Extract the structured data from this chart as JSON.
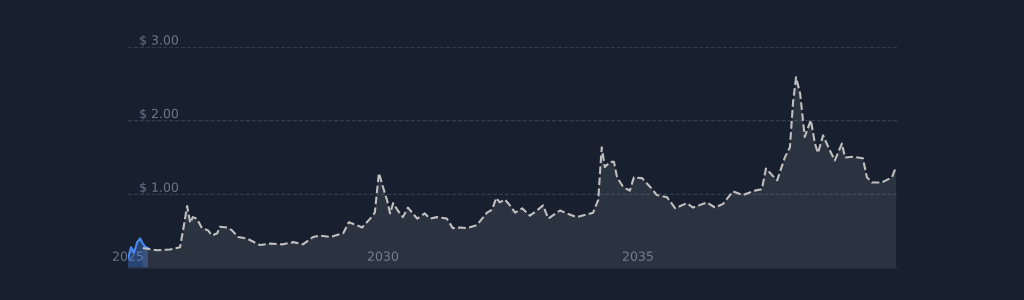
{
  "chart_data": {
    "type": "area",
    "xlim": [
      2025,
      2040.08
    ],
    "xticks": [
      2025,
      2030,
      2035
    ],
    "ylim": [
      0,
      3
    ],
    "yticks": [
      {
        "value": 1,
        "label": "$ 1.00"
      },
      {
        "value": 2,
        "label": "$ 2.00"
      },
      {
        "value": 3,
        "label": "$ 3.00"
      }
    ],
    "grid": "y",
    "series": [
      {
        "color": "#4a8af4",
        "line_style": "solid",
        "x": [
          2025.0,
          2025.06,
          2025.12,
          2025.18,
          2025.24,
          2025.29,
          2025.35,
          2025.39
        ],
        "values": [
          0.13,
          0.28,
          0.21,
          0.35,
          0.4,
          0.33,
          0.28,
          0.27
        ]
      },
      {
        "color": "#c0c0c0",
        "line_style": "dashed",
        "x": [
          2025.29,
          2025.57,
          2025.82,
          2026.02,
          2026.08,
          2026.16,
          2026.22,
          2026.27,
          2026.35,
          2026.45,
          2026.57,
          2026.65,
          2026.75,
          2026.8,
          2026.94,
          2027.04,
          2027.16,
          2027.33,
          2027.53,
          2027.59,
          2027.78,
          2028.04,
          2028.24,
          2028.43,
          2028.63,
          2028.76,
          2028.96,
          2029.22,
          2029.33,
          2029.49,
          2029.59,
          2029.75,
          2029.84,
          2029.92,
          2030.0,
          2030.08,
          2030.14,
          2030.2,
          2030.29,
          2030.39,
          2030.49,
          2030.67,
          2030.82,
          2030.92,
          2031.06,
          2031.25,
          2031.37,
          2031.51,
          2031.65,
          2031.84,
          2032.04,
          2032.14,
          2032.22,
          2032.29,
          2032.39,
          2032.49,
          2032.59,
          2032.73,
          2032.88,
          2033.02,
          2033.14,
          2033.24,
          2033.47,
          2033.61,
          2033.8,
          2034.12,
          2034.22,
          2034.29,
          2034.35,
          2034.45,
          2034.53,
          2034.59,
          2034.71,
          2034.84,
          2034.92,
          2035.08,
          2035.24,
          2035.37,
          2035.57,
          2035.73,
          2035.96,
          2036.08,
          2036.35,
          2036.51,
          2036.67,
          2036.86,
          2037.06,
          2037.29,
          2037.43,
          2037.51,
          2037.63,
          2037.73,
          2037.88,
          2037.98,
          2038.04,
          2038.1,
          2038.18,
          2038.27,
          2038.39,
          2038.47,
          2038.53,
          2038.63,
          2038.76,
          2038.86,
          2039.0,
          2039.06,
          2039.22,
          2039.41,
          2039.49,
          2039.59,
          2039.78,
          2039.98,
          2040.06
        ],
        "values": [
          0.27,
          0.24,
          0.25,
          0.28,
          0.51,
          0.84,
          0.61,
          0.69,
          0.67,
          0.54,
          0.51,
          0.44,
          0.47,
          0.56,
          0.55,
          0.51,
          0.42,
          0.4,
          0.33,
          0.31,
          0.33,
          0.32,
          0.35,
          0.32,
          0.42,
          0.44,
          0.42,
          0.47,
          0.62,
          0.58,
          0.55,
          0.67,
          0.75,
          1.29,
          1.1,
          0.92,
          0.74,
          0.88,
          0.78,
          0.69,
          0.82,
          0.67,
          0.74,
          0.67,
          0.69,
          0.67,
          0.54,
          0.55,
          0.54,
          0.58,
          0.75,
          0.79,
          0.95,
          0.89,
          0.93,
          0.85,
          0.75,
          0.81,
          0.71,
          0.78,
          0.85,
          0.67,
          0.78,
          0.74,
          0.69,
          0.75,
          0.92,
          1.64,
          1.37,
          1.44,
          1.44,
          1.23,
          1.1,
          1.05,
          1.23,
          1.22,
          1.1,
          0.99,
          0.96,
          0.81,
          0.88,
          0.82,
          0.89,
          0.82,
          0.87,
          1.04,
          0.99,
          1.05,
          1.07,
          1.35,
          1.26,
          1.19,
          1.5,
          1.64,
          2.24,
          2.59,
          2.37,
          1.78,
          2.01,
          1.69,
          1.56,
          1.8,
          1.6,
          1.46,
          1.69,
          1.5,
          1.51,
          1.49,
          1.23,
          1.16,
          1.16,
          1.23,
          1.37
        ]
      }
    ]
  }
}
